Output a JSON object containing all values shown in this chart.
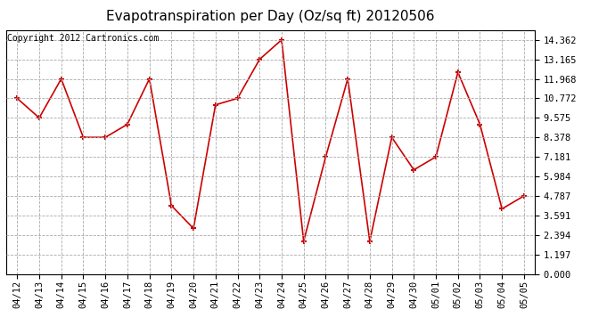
{
  "title": "Evapotranspiration per Day (Oz/sq ft) 20120506",
  "copyright": "Copyright 2012 Cartronics.com",
  "labels": [
    "04/12",
    "04/13",
    "04/14",
    "04/15",
    "04/16",
    "04/17",
    "04/18",
    "04/19",
    "04/20",
    "04/21",
    "04/22",
    "04/23",
    "04/24",
    "04/25",
    "04/26",
    "04/27",
    "04/28",
    "04/29",
    "04/30",
    "05/01",
    "05/02",
    "05/03",
    "05/04",
    "05/05"
  ],
  "values": [
    10.772,
    9.575,
    11.968,
    8.378,
    8.378,
    9.178,
    11.968,
    4.19,
    2.788,
    10.374,
    10.772,
    13.165,
    14.362,
    2.0,
    7.181,
    11.968,
    2.0,
    8.378,
    6.384,
    7.181,
    12.368,
    9.178,
    3.99,
    4.787
  ],
  "line_color": "#cc0000",
  "marker_color": "#cc0000",
  "grid_color": "#aaaaaa",
  "bg_color": "#ffffff",
  "plot_bg_color": "#ffffff",
  "yticks": [
    0.0,
    1.197,
    2.394,
    3.591,
    4.787,
    5.984,
    7.181,
    8.378,
    9.575,
    10.772,
    11.968,
    13.165,
    14.362
  ],
  "ylim": [
    0.0,
    14.962
  ],
  "title_fontsize": 11,
  "copyright_fontsize": 7,
  "tick_fontsize": 7.5,
  "xlabel_rotation": 90
}
